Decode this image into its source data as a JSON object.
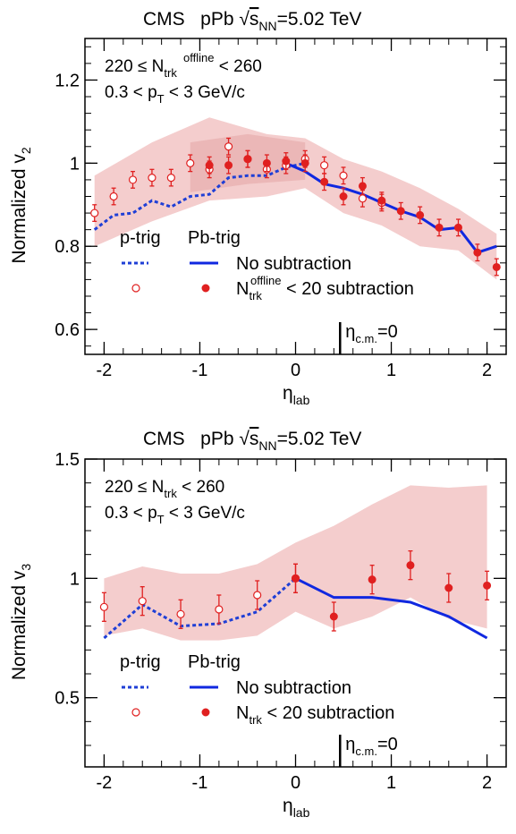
{
  "chart_data": [
    {
      "type": "scatter",
      "header": [
        "CMS",
        "pPb",
        "√",
        "s",
        "NN",
        "=5.02 TeV"
      ],
      "ylabel": [
        "Normalized v",
        "2"
      ],
      "xlabel": [
        "η",
        "lab"
      ],
      "annotations": [
        [
          "220 ≤ N",
          "trk",
          "offline",
          " < 260"
        ],
        [
          "0.3 < p",
          "T",
          " < 3 GeV/c"
        ]
      ],
      "eta_cm_label": [
        "η",
        "c.m.",
        "=0"
      ],
      "eta_cm_value": 0.465,
      "xlim": [
        -2.2,
        2.2
      ],
      "ylim": [
        0.54,
        1.3
      ],
      "xticks": [
        "-2",
        "-1",
        "0",
        "1",
        "2"
      ],
      "xtick_values": [
        -2,
        -1,
        0,
        1,
        2
      ],
      "yticks": [
        "0.6",
        "0.8",
        "1",
        "1.2"
      ],
      "ytick_values": [
        0.6,
        0.8,
        1.0,
        1.2
      ],
      "legend": {
        "col_headers": [
          "p-trig",
          "Pb-trig"
        ],
        "rows": [
          [
            "No subtraction"
          ],
          [
            "N",
            "trk",
            "offline",
            " < 20 subtraction"
          ]
        ]
      },
      "series": [
        {
          "kind": "band",
          "color": "#f2c4c4",
          "x": [
            -2.1,
            -1.5,
            -0.9,
            -0.3,
            0.1,
            0.5,
            0.9,
            1.3,
            1.7,
            2.1
          ],
          "upper": [
            0.97,
            1.05,
            1.11,
            1.07,
            1.06,
            1.01,
            0.98,
            0.94,
            0.89,
            0.83
          ],
          "lower": [
            0.8,
            0.86,
            0.91,
            0.92,
            0.94,
            0.88,
            0.85,
            0.8,
            0.79,
            0.72
          ]
        },
        {
          "kind": "band",
          "color": "#e9b3b3",
          "x": [
            -1.1,
            -0.5,
            0.1
          ],
          "upper": [
            1.05,
            1.07,
            1.05
          ],
          "lower": [
            0.93,
            0.95,
            0.96
          ]
        },
        {
          "kind": "line",
          "style": "dotted",
          "color": "#1f3fd6",
          "x": [
            -2.1,
            -1.9,
            -1.7,
            -1.5,
            -1.3,
            -1.1,
            -0.9,
            -0.7,
            -0.5,
            -0.3,
            -0.1,
            0.1
          ],
          "y": [
            0.84,
            0.875,
            0.88,
            0.91,
            0.895,
            0.92,
            0.925,
            0.965,
            0.97,
            0.97,
            0.99,
            1.0
          ]
        },
        {
          "kind": "line",
          "style": "solid",
          "color": "#1028e0",
          "x": [
            -0.1,
            0.1,
            0.3,
            0.5,
            0.7,
            0.9,
            1.1,
            1.3,
            1.5,
            1.7,
            1.9,
            2.1
          ],
          "y": [
            1.0,
            0.98,
            0.95,
            0.94,
            0.925,
            0.905,
            0.885,
            0.87,
            0.84,
            0.845,
            0.785,
            0.8
          ]
        },
        {
          "kind": "points",
          "marker": "open",
          "color": "#e02020",
          "x": [
            -2.1,
            -1.9,
            -1.7,
            -1.5,
            -1.3,
            -1.1,
            -0.9,
            -0.7,
            -0.5,
            -0.3,
            -0.1,
            0.1,
            0.3,
            0.5,
            0.7,
            0.9
          ],
          "y": [
            0.88,
            0.92,
            0.96,
            0.965,
            0.965,
            1.0,
            0.985,
            1.04,
            1.01,
            0.985,
            0.995,
            1.01,
            0.995,
            0.97,
            0.915,
            0.905
          ],
          "err": [
            0.02,
            0.02,
            0.02,
            0.02,
            0.02,
            0.02,
            0.02,
            0.02,
            0.02,
            0.02,
            0.02,
            0.02,
            0.02,
            0.02,
            0.02,
            0.02
          ]
        },
        {
          "kind": "points",
          "marker": "filled",
          "color": "#e02020",
          "x": [
            -0.9,
            -0.7,
            -0.5,
            -0.3,
            -0.1,
            0.1,
            0.3,
            0.5,
            0.7,
            0.9,
            1.1,
            1.3,
            1.5,
            1.7,
            1.9,
            2.1
          ],
          "y": [
            0.995,
            0.995,
            1.01,
            1.0,
            1.005,
            1.0,
            0.955,
            0.92,
            0.945,
            0.91,
            0.885,
            0.875,
            0.845,
            0.845,
            0.785,
            0.75
          ],
          "err": [
            0.02,
            0.02,
            0.02,
            0.02,
            0.02,
            0.02,
            0.02,
            0.02,
            0.02,
            0.02,
            0.02,
            0.02,
            0.02,
            0.02,
            0.02,
            0.02
          ]
        }
      ]
    },
    {
      "type": "scatter",
      "header": [
        "CMS",
        "pPb",
        "√",
        "s",
        "NN",
        "=5.02 TeV"
      ],
      "ylabel": [
        "Normalized v",
        "3"
      ],
      "xlabel": [
        "η",
        "lab"
      ],
      "annotations": [
        [
          "220 ≤ N",
          "trk",
          "",
          " < 260"
        ],
        [
          "0.3 < p",
          "T",
          " < 3 GeV/c"
        ]
      ],
      "eta_cm_label": [
        "η",
        "c.m.",
        "=0"
      ],
      "eta_cm_value": 0.465,
      "xlim": [
        -2.2,
        2.2
      ],
      "ylim": [
        0.21,
        1.5
      ],
      "xticks": [
        "-2",
        "-1",
        "0",
        "1",
        "2"
      ],
      "xtick_values": [
        -2,
        -1,
        0,
        1,
        2
      ],
      "yticks": [
        "0.5",
        "1",
        "1.5"
      ],
      "ytick_values": [
        0.5,
        1.0,
        1.5
      ],
      "legend": {
        "col_headers": [
          "p-trig",
          "Pb-trig"
        ],
        "rows": [
          [
            "No subtraction"
          ],
          [
            "N",
            "trk",
            "",
            " < 20 subtraction"
          ]
        ]
      },
      "series": [
        {
          "kind": "band",
          "color": "#f2c4c4",
          "x": [
            -2.0,
            -1.6,
            -1.2,
            -0.8,
            -0.4,
            0.0,
            0.4,
            0.8,
            1.2,
            1.6,
            2.0
          ],
          "upper": [
            1.0,
            1.05,
            1.02,
            1.02,
            1.06,
            1.15,
            1.22,
            1.31,
            1.39,
            1.38,
            1.39
          ],
          "lower": [
            0.76,
            0.79,
            0.74,
            0.74,
            0.76,
            0.86,
            0.79,
            0.84,
            0.92,
            0.83,
            0.79
          ]
        },
        {
          "kind": "line",
          "style": "dotted",
          "color": "#1f3fd6",
          "x": [
            -2.0,
            -1.6,
            -1.2,
            -0.8,
            -0.4,
            0.0
          ],
          "y": [
            0.75,
            0.89,
            0.8,
            0.81,
            0.86,
            1.0
          ]
        },
        {
          "kind": "line",
          "style": "solid",
          "color": "#1028e0",
          "x": [
            0.0,
            0.4,
            0.8,
            1.2,
            1.6,
            2.0
          ],
          "y": [
            1.0,
            0.92,
            0.92,
            0.9,
            0.84,
            0.75
          ]
        },
        {
          "kind": "points",
          "marker": "open",
          "color": "#e02020",
          "x": [
            -2.0,
            -1.6,
            -1.2,
            -0.8,
            -0.4,
            0.0
          ],
          "y": [
            0.88,
            0.905,
            0.85,
            0.87,
            0.93,
            1.0
          ],
          "err": [
            0.06,
            0.06,
            0.06,
            0.06,
            0.06,
            0.06
          ]
        },
        {
          "kind": "points",
          "marker": "filled",
          "color": "#e02020",
          "x": [
            0.0,
            0.4,
            0.8,
            1.2,
            1.6,
            2.0
          ],
          "y": [
            1.0,
            0.84,
            0.995,
            1.055,
            0.96,
            0.97
          ],
          "err": [
            0.06,
            0.06,
            0.06,
            0.06,
            0.06,
            0.06
          ]
        }
      ]
    }
  ]
}
